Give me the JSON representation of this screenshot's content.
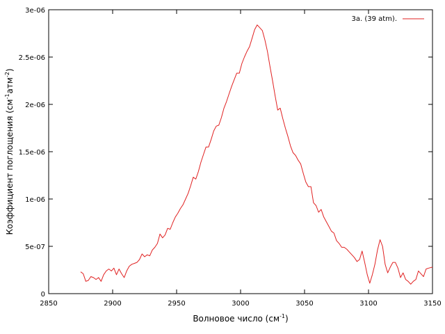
{
  "chart_data": {
    "type": "line",
    "xlabel": "Волновое число (см",
    "xlabel_sup": "-1",
    "xlabel_end": ")",
    "ylabel": "Коэффициент поглощения (см",
    "ylabel_sup1": "-1",
    "ylabel_mid": "атм",
    "ylabel_sup2": "-2",
    "ylabel_end": ")",
    "xlim": [
      2850,
      3150
    ],
    "ylim": [
      0,
      3e-06
    ],
    "x_ticks": [
      2850,
      2900,
      2950,
      3000,
      3050,
      3100,
      3150
    ],
    "x_tick_labels": [
      "2850",
      "2900",
      "2950",
      "3000",
      "3050",
      "3100",
      "3150"
    ],
    "y_ticks": [
      0,
      5e-07,
      1e-06,
      1.5e-06,
      2e-06,
      2.5e-06,
      3e-06
    ],
    "y_tick_labels": [
      "0",
      "5e-07",
      "1e-06",
      "1.5e-06",
      "2e-06",
      "2.5e-06",
      "3e-06"
    ],
    "grid": false,
    "legend_position": "top-right",
    "series": [
      {
        "name": "3a. (39 atm).",
        "color": "#e02020",
        "points": [
          [
            2875,
            2.3e-07
          ],
          [
            2877,
            2.1e-07
          ],
          [
            2879,
            1.3e-07
          ],
          [
            2881,
            1.4e-07
          ],
          [
            2883,
            1.8e-07
          ],
          [
            2885,
            1.7e-07
          ],
          [
            2887,
            1.5e-07
          ],
          [
            2889,
            1.7e-07
          ],
          [
            2891,
            1.3e-07
          ],
          [
            2893,
            2e-07
          ],
          [
            2895,
            2.4e-07
          ],
          [
            2897,
            2.6e-07
          ],
          [
            2899,
            2.4e-07
          ],
          [
            2901,
            2.7e-07
          ],
          [
            2903,
            2e-07
          ],
          [
            2905,
            2.6e-07
          ],
          [
            2907,
            2.1e-07
          ],
          [
            2909,
            1.7e-07
          ],
          [
            2911,
            2.4e-07
          ],
          [
            2913,
            2.9e-07
          ],
          [
            2915,
            3.1e-07
          ],
          [
            2917,
            3.2e-07
          ],
          [
            2919,
            3.3e-07
          ],
          [
            2921,
            3.6e-07
          ],
          [
            2923,
            4.2e-07
          ],
          [
            2925,
            3.9e-07
          ],
          [
            2927,
            4.1e-07
          ],
          [
            2929,
            4e-07
          ],
          [
            2931,
            4.6e-07
          ],
          [
            2933,
            4.9e-07
          ],
          [
            2935,
            5.3e-07
          ],
          [
            2937,
            6.3e-07
          ],
          [
            2939,
            5.9e-07
          ],
          [
            2941,
            6.2e-07
          ],
          [
            2943,
            6.9e-07
          ],
          [
            2945,
            6.8e-07
          ],
          [
            2947,
            7.5e-07
          ],
          [
            2949,
            8.1e-07
          ],
          [
            2951,
            8.5e-07
          ],
          [
            2953,
            9e-07
          ],
          [
            2955,
            9.4e-07
          ],
          [
            2957,
            1e-06
          ],
          [
            2959,
            1.06e-06
          ],
          [
            2961,
            1.14e-06
          ],
          [
            2963,
            1.23e-06
          ],
          [
            2965,
            1.21e-06
          ],
          [
            2967,
            1.29e-06
          ],
          [
            2969,
            1.39e-06
          ],
          [
            2971,
            1.47e-06
          ],
          [
            2973,
            1.55e-06
          ],
          [
            2975,
            1.55e-06
          ],
          [
            2977,
            1.63e-06
          ],
          [
            2979,
            1.72e-06
          ],
          [
            2981,
            1.77e-06
          ],
          [
            2983,
            1.78e-06
          ],
          [
            2985,
            1.86e-06
          ],
          [
            2987,
            1.96e-06
          ],
          [
            2989,
            2.03e-06
          ],
          [
            2991,
            2.11e-06
          ],
          [
            2993,
            2.19e-06
          ],
          [
            2995,
            2.26e-06
          ],
          [
            2997,
            2.33e-06
          ],
          [
            2999,
            2.33e-06
          ],
          [
            3001,
            2.43e-06
          ],
          [
            3003,
            2.5e-06
          ],
          [
            3005,
            2.56e-06
          ],
          [
            3007,
            2.61e-06
          ],
          [
            3009,
            2.7e-06
          ],
          [
            3011,
            2.79e-06
          ],
          [
            3013,
            2.84e-06
          ],
          [
            3015,
            2.81e-06
          ],
          [
            3017,
            2.78e-06
          ],
          [
            3019,
            2.68e-06
          ],
          [
            3021,
            2.56e-06
          ],
          [
            3023,
            2.4e-06
          ],
          [
            3025,
            2.25e-06
          ],
          [
            3027,
            2.09e-06
          ],
          [
            3029,
            1.94e-06
          ],
          [
            3031,
            1.96e-06
          ],
          [
            3033,
            1.85e-06
          ],
          [
            3035,
            1.75e-06
          ],
          [
            3037,
            1.66e-06
          ],
          [
            3039,
            1.56e-06
          ],
          [
            3041,
            1.49e-06
          ],
          [
            3043,
            1.46e-06
          ],
          [
            3045,
            1.41e-06
          ],
          [
            3047,
            1.37e-06
          ],
          [
            3049,
            1.27e-06
          ],
          [
            3051,
            1.18e-06
          ],
          [
            3053,
            1.13e-06
          ],
          [
            3055,
            1.13e-06
          ],
          [
            3057,
            9.6e-07
          ],
          [
            3059,
            9.3e-07
          ],
          [
            3061,
            8.6e-07
          ],
          [
            3063,
            8.9e-07
          ],
          [
            3065,
            8.1e-07
          ],
          [
            3067,
            7.6e-07
          ],
          [
            3069,
            7.1e-07
          ],
          [
            3071,
            6.6e-07
          ],
          [
            3073,
            6.4e-07
          ],
          [
            3075,
            5.6e-07
          ],
          [
            3077,
            5.3e-07
          ],
          [
            3079,
            4.9e-07
          ],
          [
            3081,
            4.9e-07
          ],
          [
            3083,
            4.7e-07
          ],
          [
            3085,
            4.4e-07
          ],
          [
            3087,
            4.1e-07
          ],
          [
            3089,
            3.8e-07
          ],
          [
            3091,
            3.4e-07
          ],
          [
            3093,
            3.6e-07
          ],
          [
            3095,
            4.5e-07
          ],
          [
            3097,
            3.3e-07
          ],
          [
            3099,
            2e-07
          ],
          [
            3101,
            1.1e-07
          ],
          [
            3103,
            2e-07
          ],
          [
            3105,
            3.1e-07
          ],
          [
            3107,
            4.6e-07
          ],
          [
            3109,
            5.7e-07
          ],
          [
            3111,
            5e-07
          ],
          [
            3113,
            3.1e-07
          ],
          [
            3115,
            2.2e-07
          ],
          [
            3117,
            2.8e-07
          ],
          [
            3119,
            3.3e-07
          ],
          [
            3121,
            3.3e-07
          ],
          [
            3123,
            2.7e-07
          ],
          [
            3125,
            1.7e-07
          ],
          [
            3127,
            2.2e-07
          ],
          [
            3129,
            1.5e-07
          ],
          [
            3131,
            1.3e-07
          ],
          [
            3133,
            1e-07
          ],
          [
            3135,
            1.3e-07
          ],
          [
            3137,
            1.5e-07
          ],
          [
            3139,
            2.4e-07
          ],
          [
            3141,
            2.1e-07
          ],
          [
            3143,
            1.8e-07
          ],
          [
            3145,
            2.6e-07
          ],
          [
            3147,
            2.7e-07
          ],
          [
            3150,
            2.8e-07
          ]
        ]
      }
    ]
  }
}
